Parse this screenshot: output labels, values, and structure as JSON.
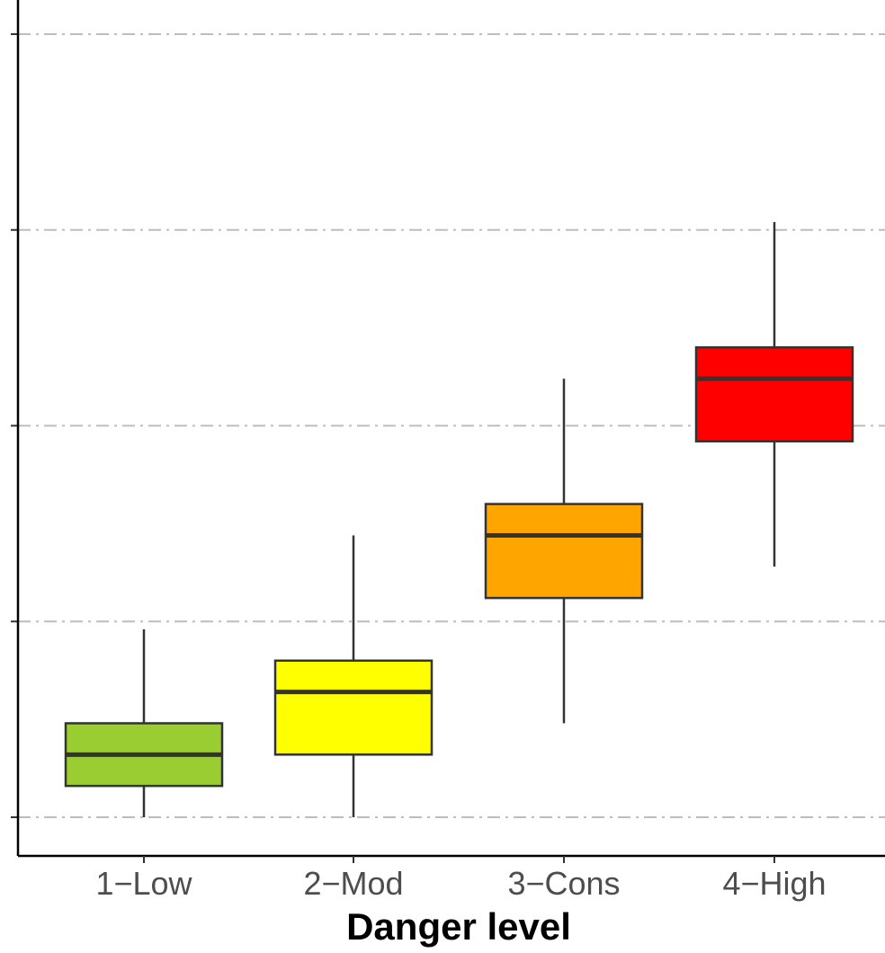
{
  "chart_data": {
    "type": "box",
    "title": "",
    "xlabel": "Danger level",
    "ylabel": "",
    "ylim": [
      0,
      4.2
    ],
    "y_gridlines": [
      0,
      1,
      2,
      3,
      4
    ],
    "y_tick_labels_visible": false,
    "grid": "dash-dot horizontal",
    "categories": [
      "1−Low",
      "2−Mod",
      "3−Cons",
      "4−High"
    ],
    "boxes": [
      {
        "category": "1−Low",
        "min": 0.0,
        "q1": 0.16,
        "median": 0.32,
        "q3": 0.48,
        "max": 0.96,
        "color": "#9acd32"
      },
      {
        "category": "2−Mod",
        "min": 0.0,
        "q1": 0.32,
        "median": 0.64,
        "q3": 0.8,
        "max": 1.44,
        "color": "#ffff00"
      },
      {
        "category": "3−Cons",
        "min": 0.48,
        "q1": 1.12,
        "median": 1.44,
        "q3": 1.6,
        "max": 2.24,
        "color": "#ffa500"
      },
      {
        "category": "4−High",
        "min": 1.28,
        "q1": 1.92,
        "median": 2.24,
        "q3": 2.4,
        "max": 3.04,
        "color": "#ff0000"
      }
    ]
  }
}
